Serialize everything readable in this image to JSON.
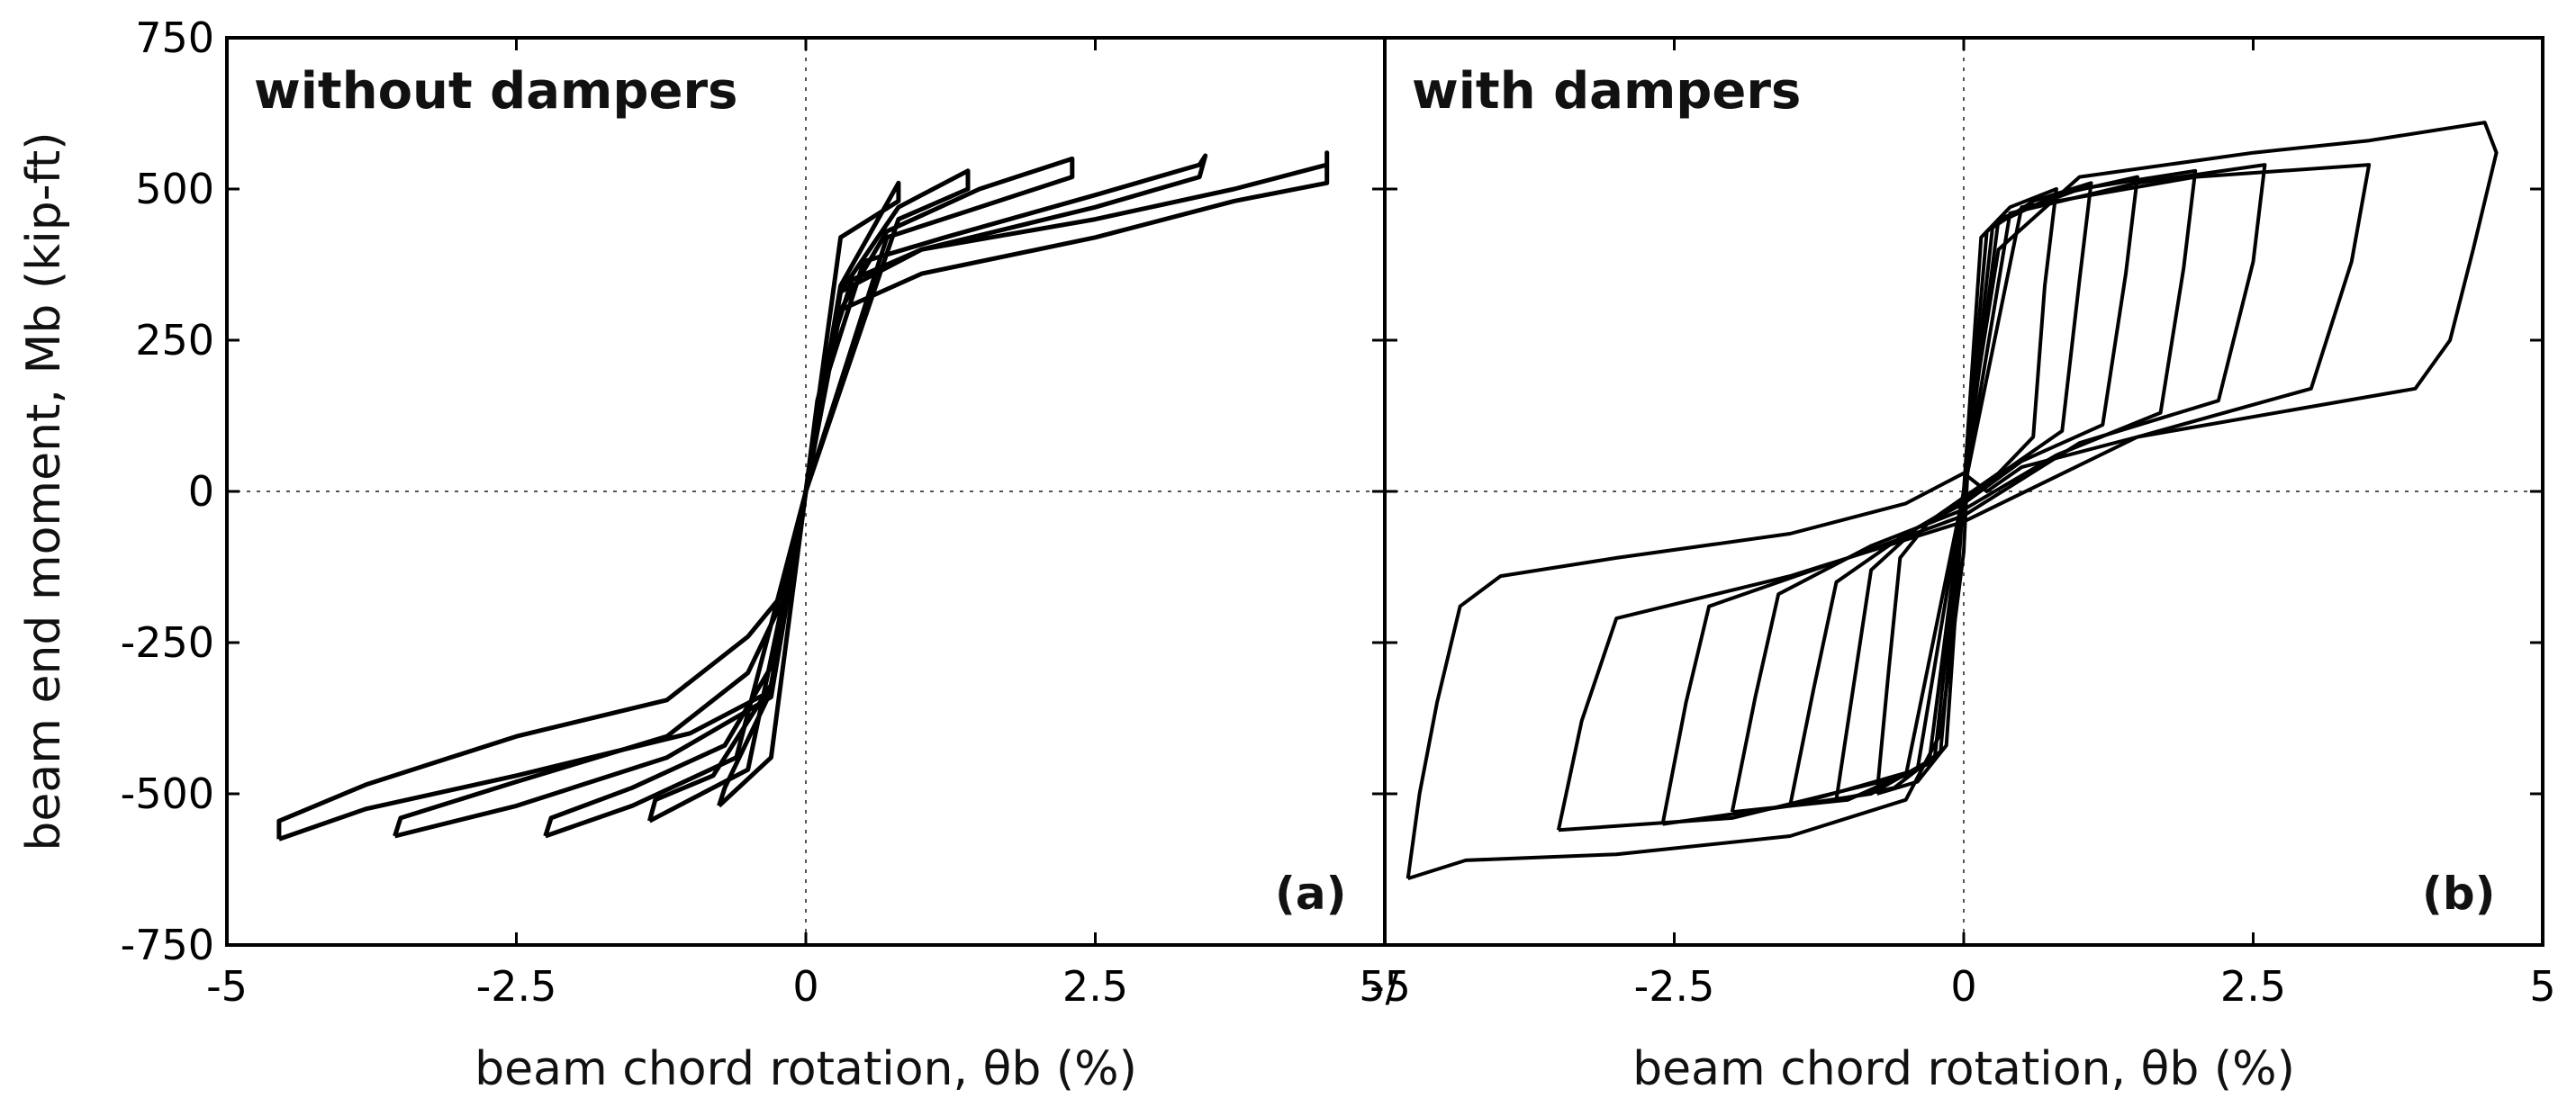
{
  "chart_data": [
    {
      "type": "line",
      "title": "without dampers",
      "panel_label": "(a)",
      "xlabel": "beam chord rotation, θb (%)",
      "ylabel": "beam end moment, Mb (kip-ft)",
      "xlim": [
        -5,
        5
      ],
      "ylim": [
        -750,
        750
      ],
      "xticks": [
        "-5",
        "-2.5",
        "0",
        "2.5",
        "5/"
      ],
      "yticks": [
        "750",
        "500",
        "250",
        "0",
        "-250",
        "-500",
        "-750"
      ],
      "grid": false,
      "zero_lines": true,
      "series": [
        {
          "values": [
            [
              -4.55,
              -575
            ],
            [
              -4.55,
              -545
            ],
            [
              -3.8,
              -485
            ],
            [
              -2.5,
              -405
            ],
            [
              -1.2,
              -345
            ],
            [
              -0.5,
              -240
            ],
            [
              -0.2,
              -170
            ],
            [
              -0.05,
              -60
            ],
            [
              0,
              0
            ],
            [
              0.05,
              70
            ],
            [
              0.2,
              230
            ],
            [
              0.4,
              350
            ],
            [
              1.0,
              400
            ],
            [
              2.5,
              450
            ],
            [
              3.7,
              500
            ],
            [
              4.5,
              540
            ],
            [
              4.5,
              560
            ],
            [
              4.5,
              510
            ],
            [
              3.7,
              480
            ],
            [
              2.5,
              420
            ],
            [
              1.0,
              360
            ],
            [
              0.3,
              300
            ],
            [
              0.1,
              150
            ],
            [
              0,
              0
            ],
            [
              -0.1,
              -110
            ],
            [
              -0.3,
              -330
            ],
            [
              -1.0,
              -400
            ],
            [
              -2.5,
              -470
            ],
            [
              -3.8,
              -525
            ],
            [
              -4.55,
              -575
            ]
          ]
        },
        {
          "values": [
            [
              -3.55,
              -570
            ],
            [
              -3.5,
              -540
            ],
            [
              -2.5,
              -480
            ],
            [
              -1.2,
              -405
            ],
            [
              -0.5,
              -300
            ],
            [
              -0.2,
              -180
            ],
            [
              0,
              0
            ],
            [
              0.2,
              200
            ],
            [
              0.5,
              380
            ],
            [
              1.2,
              420
            ],
            [
              2.5,
              490
            ],
            [
              3.4,
              540
            ],
            [
              3.45,
              555
            ],
            [
              3.4,
              520
            ],
            [
              2.5,
              470
            ],
            [
              1.0,
              400
            ],
            [
              0.3,
              330
            ],
            [
              0,
              0
            ],
            [
              -0.3,
              -340
            ],
            [
              -1.2,
              -440
            ],
            [
              -2.5,
              -520
            ],
            [
              -3.55,
              -570
            ]
          ]
        },
        {
          "values": [
            [
              -2.25,
              -570
            ],
            [
              -2.2,
              -540
            ],
            [
              -1.5,
              -490
            ],
            [
              -0.7,
              -420
            ],
            [
              -0.3,
              -290
            ],
            [
              0,
              0
            ],
            [
              0.3,
              300
            ],
            [
              0.7,
              430
            ],
            [
              1.5,
              500
            ],
            [
              2.3,
              550
            ],
            [
              2.3,
              520
            ],
            [
              1.5,
              470
            ],
            [
              0.7,
              420
            ],
            [
              0,
              0
            ],
            [
              -0.6,
              -440
            ],
            [
              -1.5,
              -520
            ],
            [
              -2.25,
              -570
            ]
          ]
        },
        {
          "values": [
            [
              -1.35,
              -545
            ],
            [
              -1.3,
              -510
            ],
            [
              -0.8,
              -470
            ],
            [
              -0.3,
              -320
            ],
            [
              0,
              0
            ],
            [
              0.3,
              330
            ],
            [
              0.8,
              470
            ],
            [
              1.4,
              530
            ],
            [
              1.4,
              500
            ],
            [
              0.8,
              450
            ],
            [
              0,
              0
            ],
            [
              -0.5,
              -460
            ],
            [
              -1.35,
              -545
            ]
          ]
        },
        {
          "values": [
            [
              -0.75,
              -520
            ],
            [
              -0.7,
              -490
            ],
            [
              -0.3,
              -330
            ],
            [
              0,
              0
            ],
            [
              0.3,
              340
            ],
            [
              0.8,
              510
            ],
            [
              0.8,
              480
            ],
            [
              0.3,
              420
            ],
            [
              0,
              0
            ],
            [
              -0.3,
              -440
            ],
            [
              -0.75,
              -520
            ]
          ]
        }
      ]
    },
    {
      "type": "line",
      "title": "with dampers",
      "panel_label": "(b)",
      "xlabel": "beam chord rotation, θb (%)",
      "ylabel": "",
      "xlim": [
        -5,
        5
      ],
      "ylim": [
        -750,
        750
      ],
      "xticks": [
        "-5",
        "-2.5",
        "0",
        "2.5",
        "5"
      ],
      "yticks": [],
      "grid": false,
      "zero_lines": true,
      "series": [
        {
          "values": [
            [
              -4.8,
              -640
            ],
            [
              -4.3,
              -610
            ],
            [
              -3.0,
              -600
            ],
            [
              -1.5,
              -570
            ],
            [
              -0.5,
              -510
            ],
            [
              -0.2,
              -400
            ],
            [
              0,
              -100
            ],
            [
              0.05,
              100
            ],
            [
              0.3,
              400
            ],
            [
              1.0,
              520
            ],
            [
              2.5,
              560
            ],
            [
              3.5,
              580
            ],
            [
              4.5,
              610
            ],
            [
              4.6,
              560
            ],
            [
              4.4,
              400
            ],
            [
              4.2,
              250
            ],
            [
              3.9,
              170
            ],
            [
              3.0,
              140
            ],
            [
              1.5,
              90
            ],
            [
              0.5,
              40
            ],
            [
              0.2,
              0
            ],
            [
              0,
              30
            ],
            [
              -0.5,
              -20
            ],
            [
              -1.5,
              -70
            ],
            [
              -3.0,
              -110
            ],
            [
              -4.0,
              -140
            ],
            [
              -4.35,
              -190
            ],
            [
              -4.55,
              -350
            ],
            [
              -4.7,
              -500
            ],
            [
              -4.8,
              -640
            ]
          ]
        },
        {
          "values": [
            [
              -3.5,
              -560
            ],
            [
              -3.3,
              -380
            ],
            [
              -3.0,
              -210
            ],
            [
              -1.5,
              -140
            ],
            [
              0,
              -50
            ],
            [
              1.5,
              90
            ],
            [
              3.0,
              170
            ],
            [
              3.35,
              380
            ],
            [
              3.5,
              540
            ],
            [
              2.0,
              520
            ],
            [
              0.5,
              470
            ],
            [
              0,
              0
            ],
            [
              -0.5,
              -470
            ],
            [
              -2.0,
              -540
            ],
            [
              -3.5,
              -560
            ]
          ]
        },
        {
          "values": [
            [
              -2.6,
              -550
            ],
            [
              -2.4,
              -350
            ],
            [
              -2.2,
              -190
            ],
            [
              -1.0,
              -110
            ],
            [
              0,
              -40
            ],
            [
              1.0,
              80
            ],
            [
              2.2,
              150
            ],
            [
              2.5,
              380
            ],
            [
              2.6,
              540
            ],
            [
              1.5,
              510
            ],
            [
              0.4,
              460
            ],
            [
              0,
              0
            ],
            [
              -0.4,
              -460
            ],
            [
              -1.5,
              -520
            ],
            [
              -2.6,
              -550
            ]
          ]
        },
        {
          "values": [
            [
              -2.0,
              -530
            ],
            [
              -1.8,
              -340
            ],
            [
              -1.6,
              -170
            ],
            [
              -0.8,
              -90
            ],
            [
              0,
              -30
            ],
            [
              0.8,
              60
            ],
            [
              1.7,
              130
            ],
            [
              1.9,
              370
            ],
            [
              2.0,
              530
            ],
            [
              1.0,
              500
            ],
            [
              0.3,
              450
            ],
            [
              0,
              0
            ],
            [
              -0.3,
              -450
            ],
            [
              -1.0,
              -510
            ],
            [
              -2.0,
              -530
            ]
          ]
        },
        {
          "values": [
            [
              -1.5,
              -520
            ],
            [
              -1.3,
              -330
            ],
            [
              -1.1,
              -150
            ],
            [
              -0.5,
              -70
            ],
            [
              0,
              -20
            ],
            [
              0.5,
              50
            ],
            [
              1.2,
              110
            ],
            [
              1.4,
              360
            ],
            [
              1.5,
              520
            ],
            [
              0.8,
              490
            ],
            [
              0.25,
              440
            ],
            [
              0,
              0
            ],
            [
              -0.25,
              -440
            ],
            [
              -0.8,
              -500
            ],
            [
              -1.5,
              -520
            ]
          ]
        },
        {
          "values": [
            [
              -1.1,
              -510
            ],
            [
              -0.95,
              -320
            ],
            [
              -0.8,
              -130
            ],
            [
              -0.4,
              -60
            ],
            [
              0,
              -15
            ],
            [
              0.4,
              40
            ],
            [
              0.85,
              100
            ],
            [
              1.0,
              350
            ],
            [
              1.1,
              510
            ],
            [
              0.6,
              480
            ],
            [
              0.2,
              430
            ],
            [
              0,
              0
            ],
            [
              -0.2,
              -430
            ],
            [
              -0.6,
              -490
            ],
            [
              -1.1,
              -510
            ]
          ]
        },
        {
          "values": [
            [
              -0.75,
              -500
            ],
            [
              -0.65,
              -300
            ],
            [
              -0.55,
              -110
            ],
            [
              -0.3,
              -50
            ],
            [
              0,
              -10
            ],
            [
              0.3,
              30
            ],
            [
              0.6,
              90
            ],
            [
              0.7,
              340
            ],
            [
              0.8,
              500
            ],
            [
              0.4,
              470
            ],
            [
              0.15,
              420
            ],
            [
              0,
              0
            ],
            [
              -0.15,
              -420
            ],
            [
              -0.4,
              -480
            ],
            [
              -0.75,
              -500
            ]
          ]
        }
      ]
    }
  ]
}
